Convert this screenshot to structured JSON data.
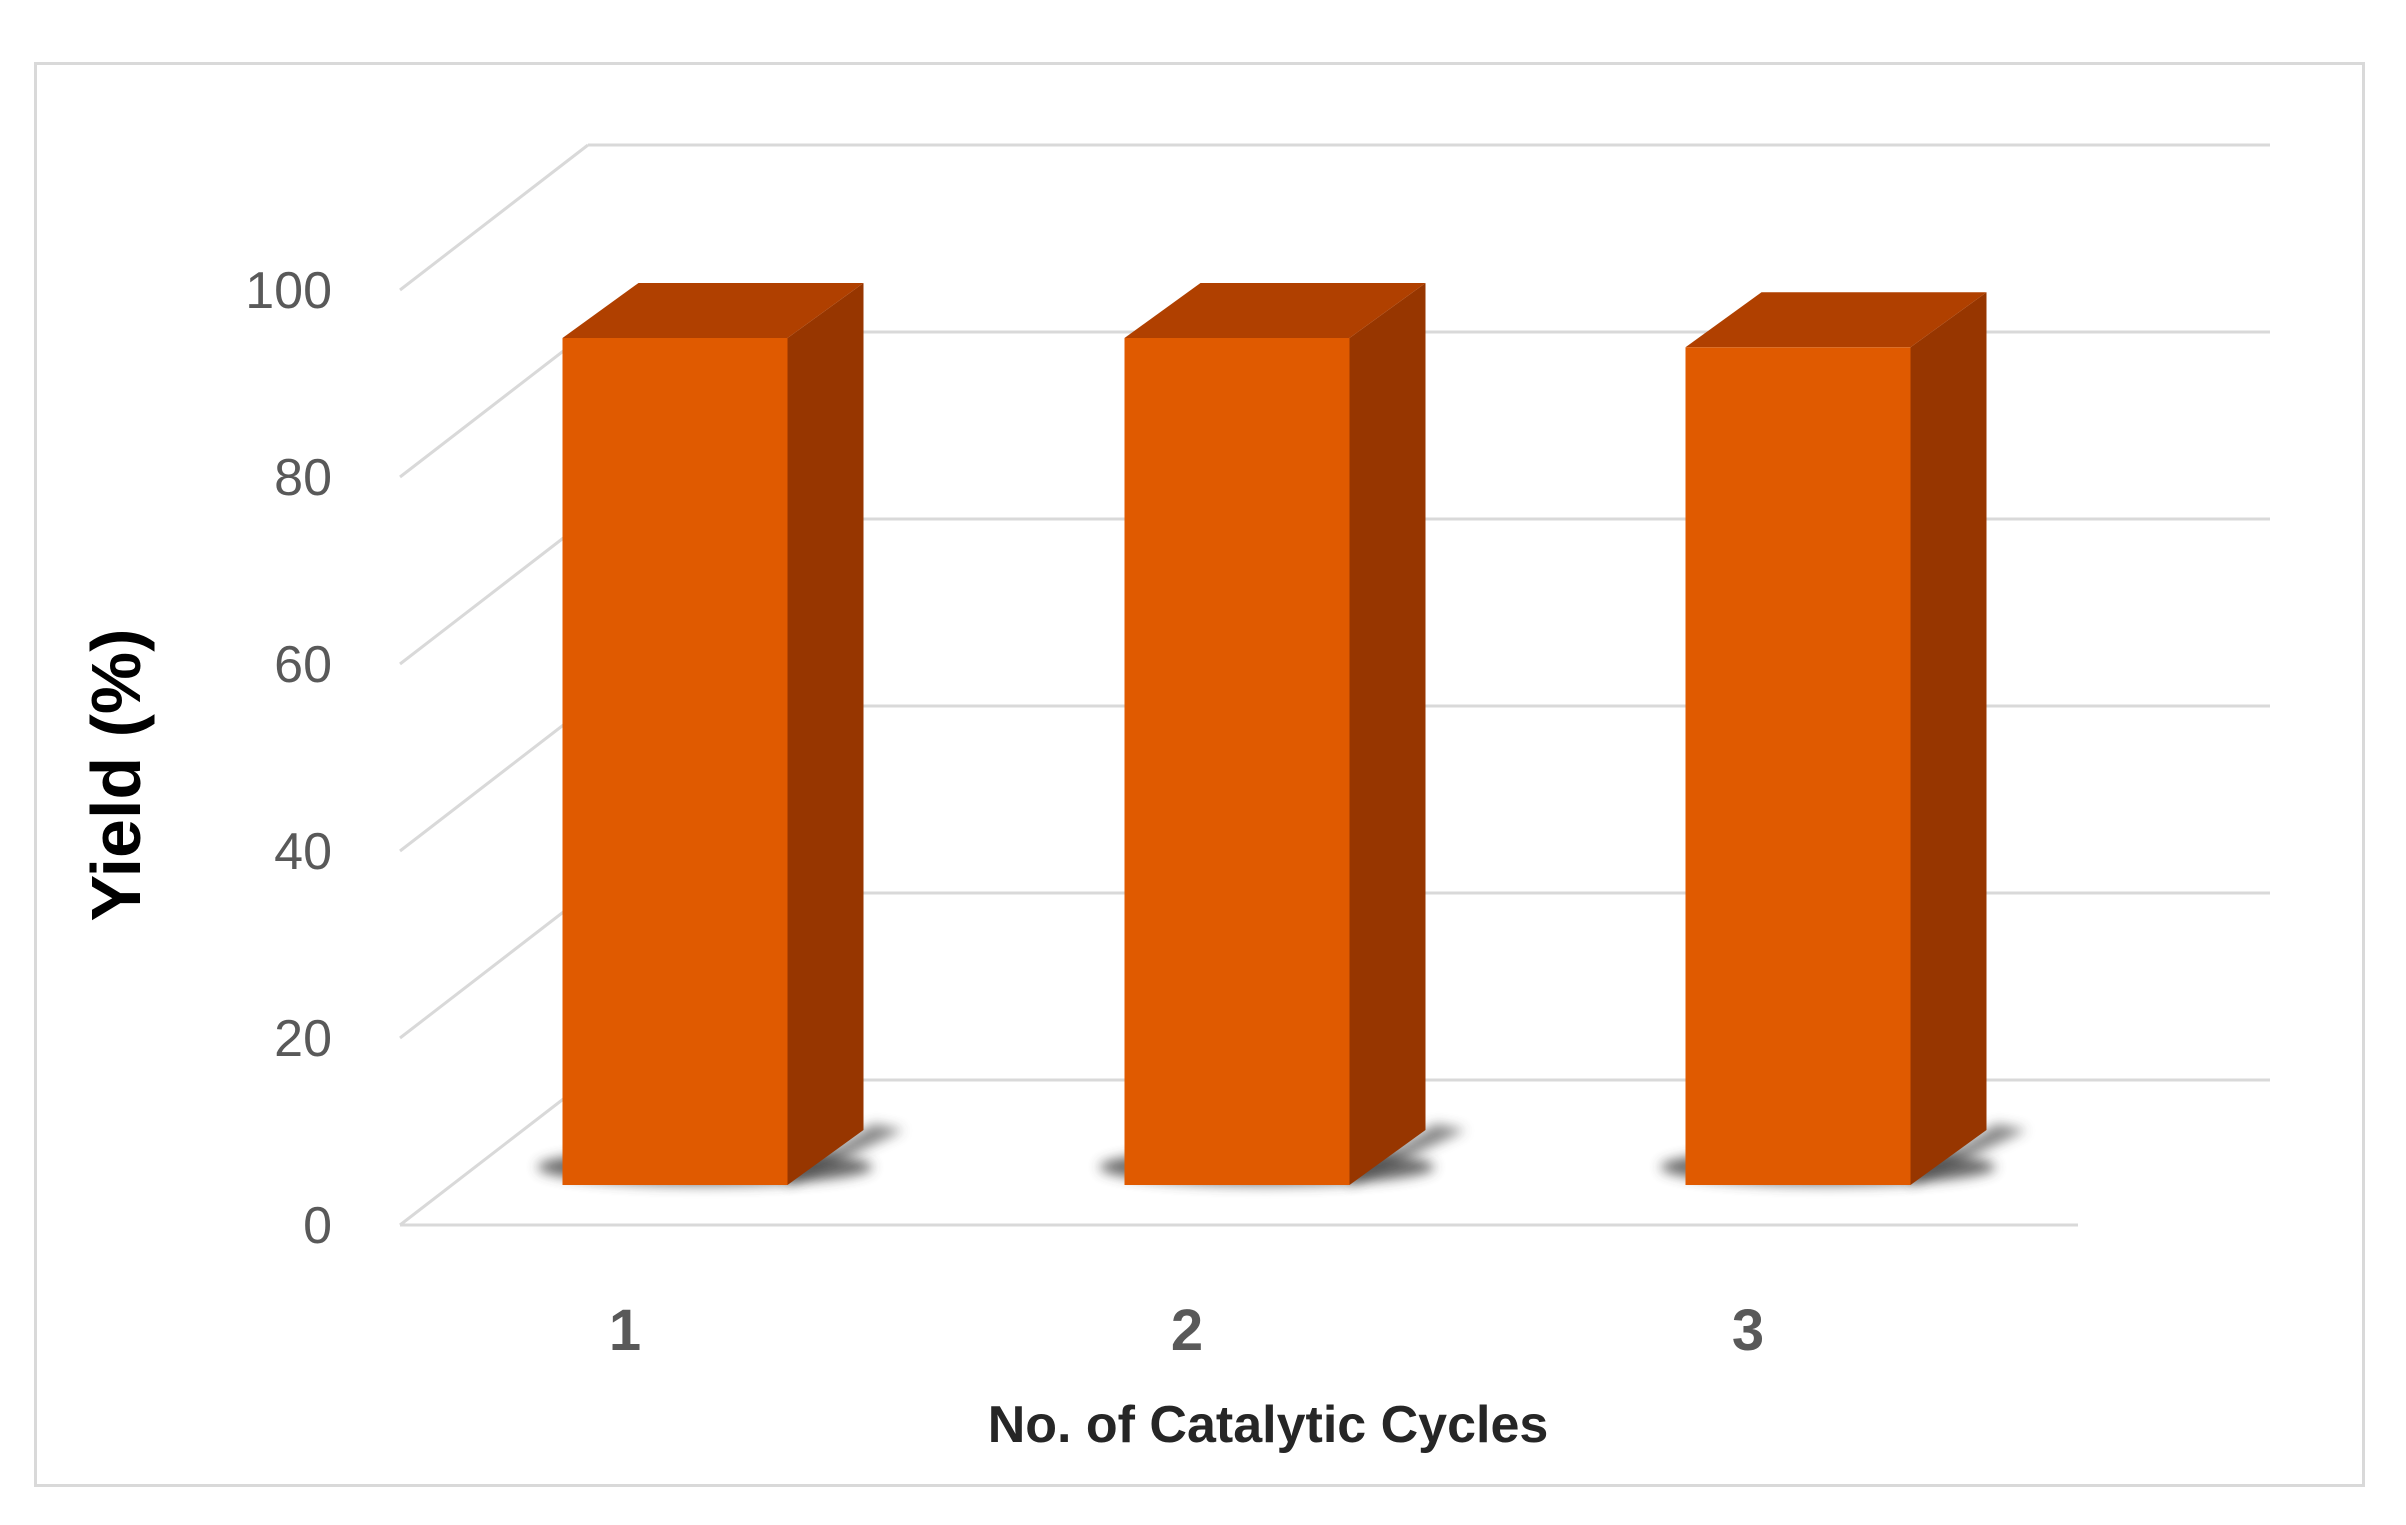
{
  "chart_data": {
    "type": "bar",
    "style": "3d-column",
    "categories": [
      "1",
      "2",
      "3"
    ],
    "values": [
      91,
      91,
      90
    ],
    "xlabel": "No. of Catalytic Cycles",
    "ylabel": "Yield (%)",
    "ylim": [
      0,
      100
    ],
    "yticks": [
      "0",
      "20",
      "40",
      "60",
      "80",
      "100"
    ],
    "grid": true,
    "legend": "none",
    "colors": {
      "bar_front": "#e05a00",
      "bar_side": "#973600",
      "bar_top": "#b04000",
      "shadow": "#3a3a3a",
      "grid": "#d9d9d9",
      "frame": "#d9d9d9"
    }
  }
}
